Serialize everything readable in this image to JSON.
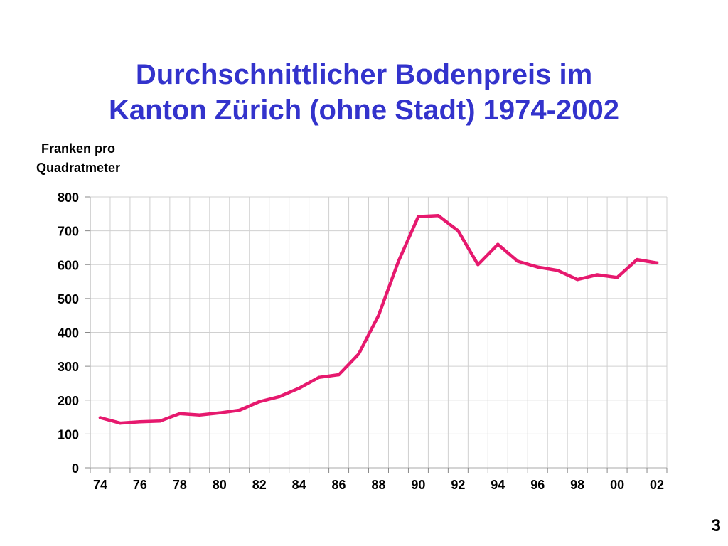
{
  "slide": {
    "title_line1": "Durchschnittlicher Bodenpreis im",
    "title_line2": "Kanton Zürich (ohne Stadt) 1974-2002",
    "page_number": "3",
    "title_color": "#3333cc"
  },
  "chart_data": {
    "type": "line",
    "title": "Durchschnittlicher Bodenpreis im Kanton Zürich (ohne Stadt) 1974-2002",
    "ylabel_line1": "Franken pro",
    "ylabel_line2": "Quadratmeter",
    "xlabel": "",
    "x": [
      1974,
      1975,
      1976,
      1977,
      1978,
      1979,
      1980,
      1981,
      1982,
      1983,
      1984,
      1985,
      1986,
      1987,
      1988,
      1989,
      1990,
      1991,
      1992,
      1993,
      1994,
      1995,
      1996,
      1997,
      1998,
      1999,
      2000,
      2001,
      2002
    ],
    "x_tick_labels": [
      "74",
      "76",
      "78",
      "80",
      "82",
      "84",
      "86",
      "88",
      "90",
      "92",
      "94",
      "96",
      "98",
      "00",
      "02"
    ],
    "y_tick_labels": [
      "0",
      "100",
      "200",
      "300",
      "400",
      "500",
      "600",
      "700",
      "800"
    ],
    "series": [
      {
        "color": "#e6196e",
        "values": [
          148,
          132,
          136,
          138,
          160,
          156,
          162,
          170,
          195,
          210,
          235,
          267,
          275,
          336,
          450,
          610,
          742,
          745,
          700,
          600,
          660,
          610,
          593,
          583,
          556,
          570,
          562,
          615,
          605
        ]
      }
    ],
    "ylim": [
      0,
      800
    ],
    "xlim": [
      1973.5,
      2002.5
    ],
    "grid": true,
    "legend": "none",
    "grid_color": "#d0d0d0"
  }
}
